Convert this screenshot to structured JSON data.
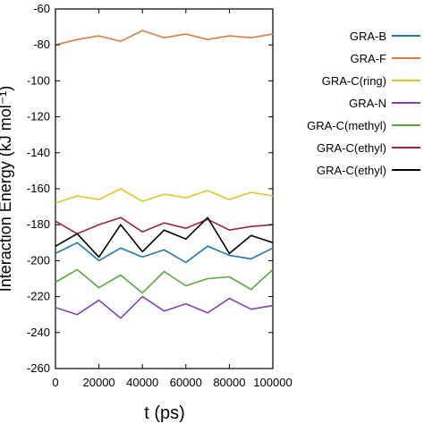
{
  "chart_data": {
    "type": "line",
    "xlabel": "t (ps)",
    "ylabel": "Interaction Energy (kJ mol⁻¹)",
    "xlim": [
      0,
      100000
    ],
    "ylim": [
      -260,
      -60
    ],
    "x_ticks": [
      "0",
      "20000",
      "40000",
      "60000",
      "80000",
      "100000"
    ],
    "y_ticks": [
      "-60",
      "-80",
      "-100",
      "-120",
      "-140",
      "-160",
      "-180",
      "-200",
      "-220",
      "-240",
      "-260"
    ],
    "grid": false,
    "legend_position": "right",
    "x": [
      0,
      10000,
      20000,
      30000,
      40000,
      50000,
      60000,
      70000,
      80000,
      90000,
      100000
    ],
    "series": [
      {
        "name": "GRA-B",
        "color": "#1f77b4",
        "values": [
          -196,
          -190,
          -200,
          -193,
          -198,
          -194,
          -201,
          -192,
          -197,
          -199,
          -193
        ]
      },
      {
        "name": "GRA-F",
        "color": "#e07b39",
        "values": [
          -80,
          -77,
          -75,
          -78,
          -72,
          -76,
          -74,
          -77,
          -75,
          -76,
          -74
        ]
      },
      {
        "name": "GRA-C(ring)",
        "color": "#f0c020",
        "values": [
          -168,
          -164,
          -166,
          -160,
          -167,
          -163,
          -165,
          -161,
          -166,
          -162,
          -164
        ]
      },
      {
        "name": "GRA-N",
        "color": "#8a3fb0",
        "values": [
          -226,
          -230,
          -222,
          -232,
          -220,
          -228,
          -224,
          -229,
          -221,
          -227,
          -225
        ]
      },
      {
        "name": "GRA-C(methyl)",
        "color": "#5aaa3a",
        "values": [
          -212,
          -205,
          -215,
          -208,
          -218,
          -206,
          -214,
          -210,
          -209,
          -216,
          -205
        ]
      },
      {
        "name": "GRA-C(ethyl)",
        "color": "#a0243a",
        "values": [
          -178,
          -185,
          -180,
          -176,
          -184,
          -179,
          -182,
          -177,
          -183,
          -181,
          -180
        ]
      },
      {
        "name": "GRA-C(ethyl)",
        "color": "#000000",
        "values": [
          -192,
          -185,
          -198,
          -180,
          -195,
          -183,
          -188,
          -176,
          -196,
          -186,
          -190
        ]
      }
    ]
  }
}
